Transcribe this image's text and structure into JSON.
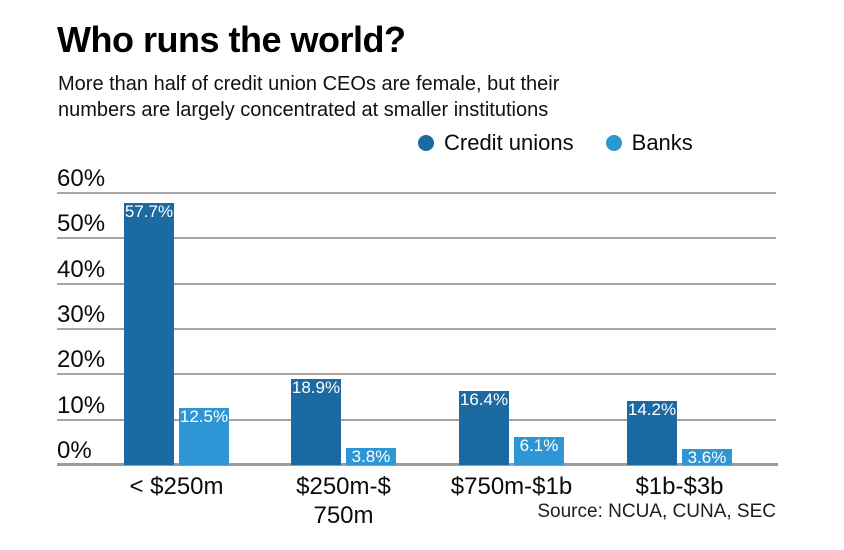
{
  "header": {
    "title": "Who runs the world?",
    "subtitle_lines": [
      "More than half of credit union CEOs are female, but their",
      "numbers are largely concentrated at smaller institutions"
    ]
  },
  "legend": [
    {
      "label": "Credit unions",
      "color": "#1b6aa1"
    },
    {
      "label": "Banks",
      "color": "#2e96d4"
    }
  ],
  "chart_data": {
    "type": "bar",
    "title": "Who runs the world?",
    "categories": [
      "< $250m",
      "$250m-$\n750m",
      "$750m-$1b",
      "$1b-$3b"
    ],
    "series": [
      {
        "name": "Credit unions",
        "color": "#1b6aa1",
        "values": [
          57.7,
          18.9,
          16.4,
          14.2
        ]
      },
      {
        "name": "Banks",
        "color": "#2e96d4",
        "values": [
          12.5,
          3.8,
          6.1,
          3.6
        ]
      }
    ],
    "value_suffix": "%",
    "y_ticks": [
      "0%",
      "10%",
      "20%",
      "30%",
      "40%",
      "50%",
      "60%"
    ],
    "ylim": [
      0,
      60
    ],
    "grid": true,
    "legend_position": "top-center",
    "data_labels": "inside-top, white"
  },
  "source": {
    "label": "Source: NCUA, CUNA, SEC"
  }
}
